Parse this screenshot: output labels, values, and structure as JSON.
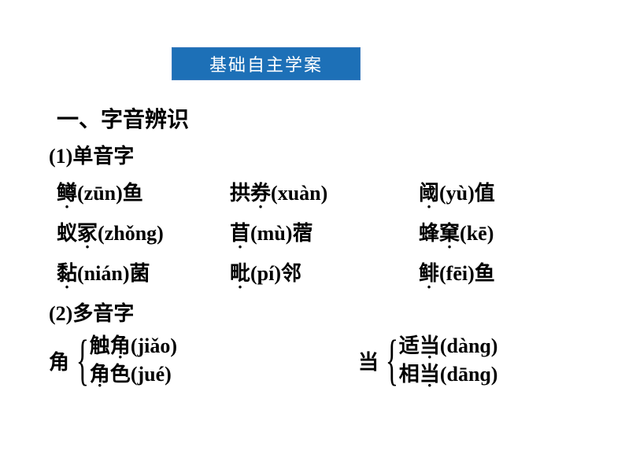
{
  "banner": {
    "text": "基础自主学案",
    "bg": "#1d70b7",
    "color": "#ffffff"
  },
  "section1": {
    "title": "一、字音辨识"
  },
  "mono": {
    "title": "(1)单音字",
    "rows": [
      [
        {
          "prefix": "",
          "char": "鳟",
          "pinyin": "(zūn)",
          "suffix": "鱼"
        },
        {
          "prefix": "拱",
          "char": "券",
          "pinyin": "(xuàn)",
          "suffix": ""
        },
        {
          "prefix": "",
          "char": "阈",
          "pinyin": "(yù)",
          "suffix": "值"
        }
      ],
      [
        {
          "prefix": "蚁",
          "char": "冢",
          "pinyin": "(zhǒng)",
          "suffix": ""
        },
        {
          "prefix": "",
          "char": "苜",
          "pinyin": "(mù)",
          "suffix": "蓿"
        },
        {
          "prefix": "蜂",
          "char": "窠",
          "pinyin": "(kē)",
          "suffix": ""
        }
      ],
      [
        {
          "prefix": "",
          "char": "黏",
          "pinyin": "(nián)",
          "suffix": "菌"
        },
        {
          "prefix": "",
          "char": "毗",
          "pinyin": "(pí)",
          "suffix": "邻"
        },
        {
          "prefix": "",
          "char": "鲱",
          "pinyin": "(fēi)",
          "suffix": "鱼"
        }
      ]
    ]
  },
  "poly": {
    "title": "(2)多音字",
    "groups": [
      {
        "head": "角",
        "lines": [
          {
            "prefix": "触",
            "char": "角",
            "pinyin": "(jiǎo)"
          },
          {
            "prefix": "",
            "char": "角",
            "pinyin": "色(jué)",
            "special": true,
            "text_before": "",
            "text_after": "色",
            "py": "(jué)"
          }
        ]
      },
      {
        "head": "当",
        "lines": [
          {
            "prefix": "适",
            "char": "当",
            "pinyin": "(dànɡ)"
          },
          {
            "prefix": "相",
            "char": "当",
            "pinyin": "(dānɡ)"
          }
        ]
      }
    ]
  }
}
